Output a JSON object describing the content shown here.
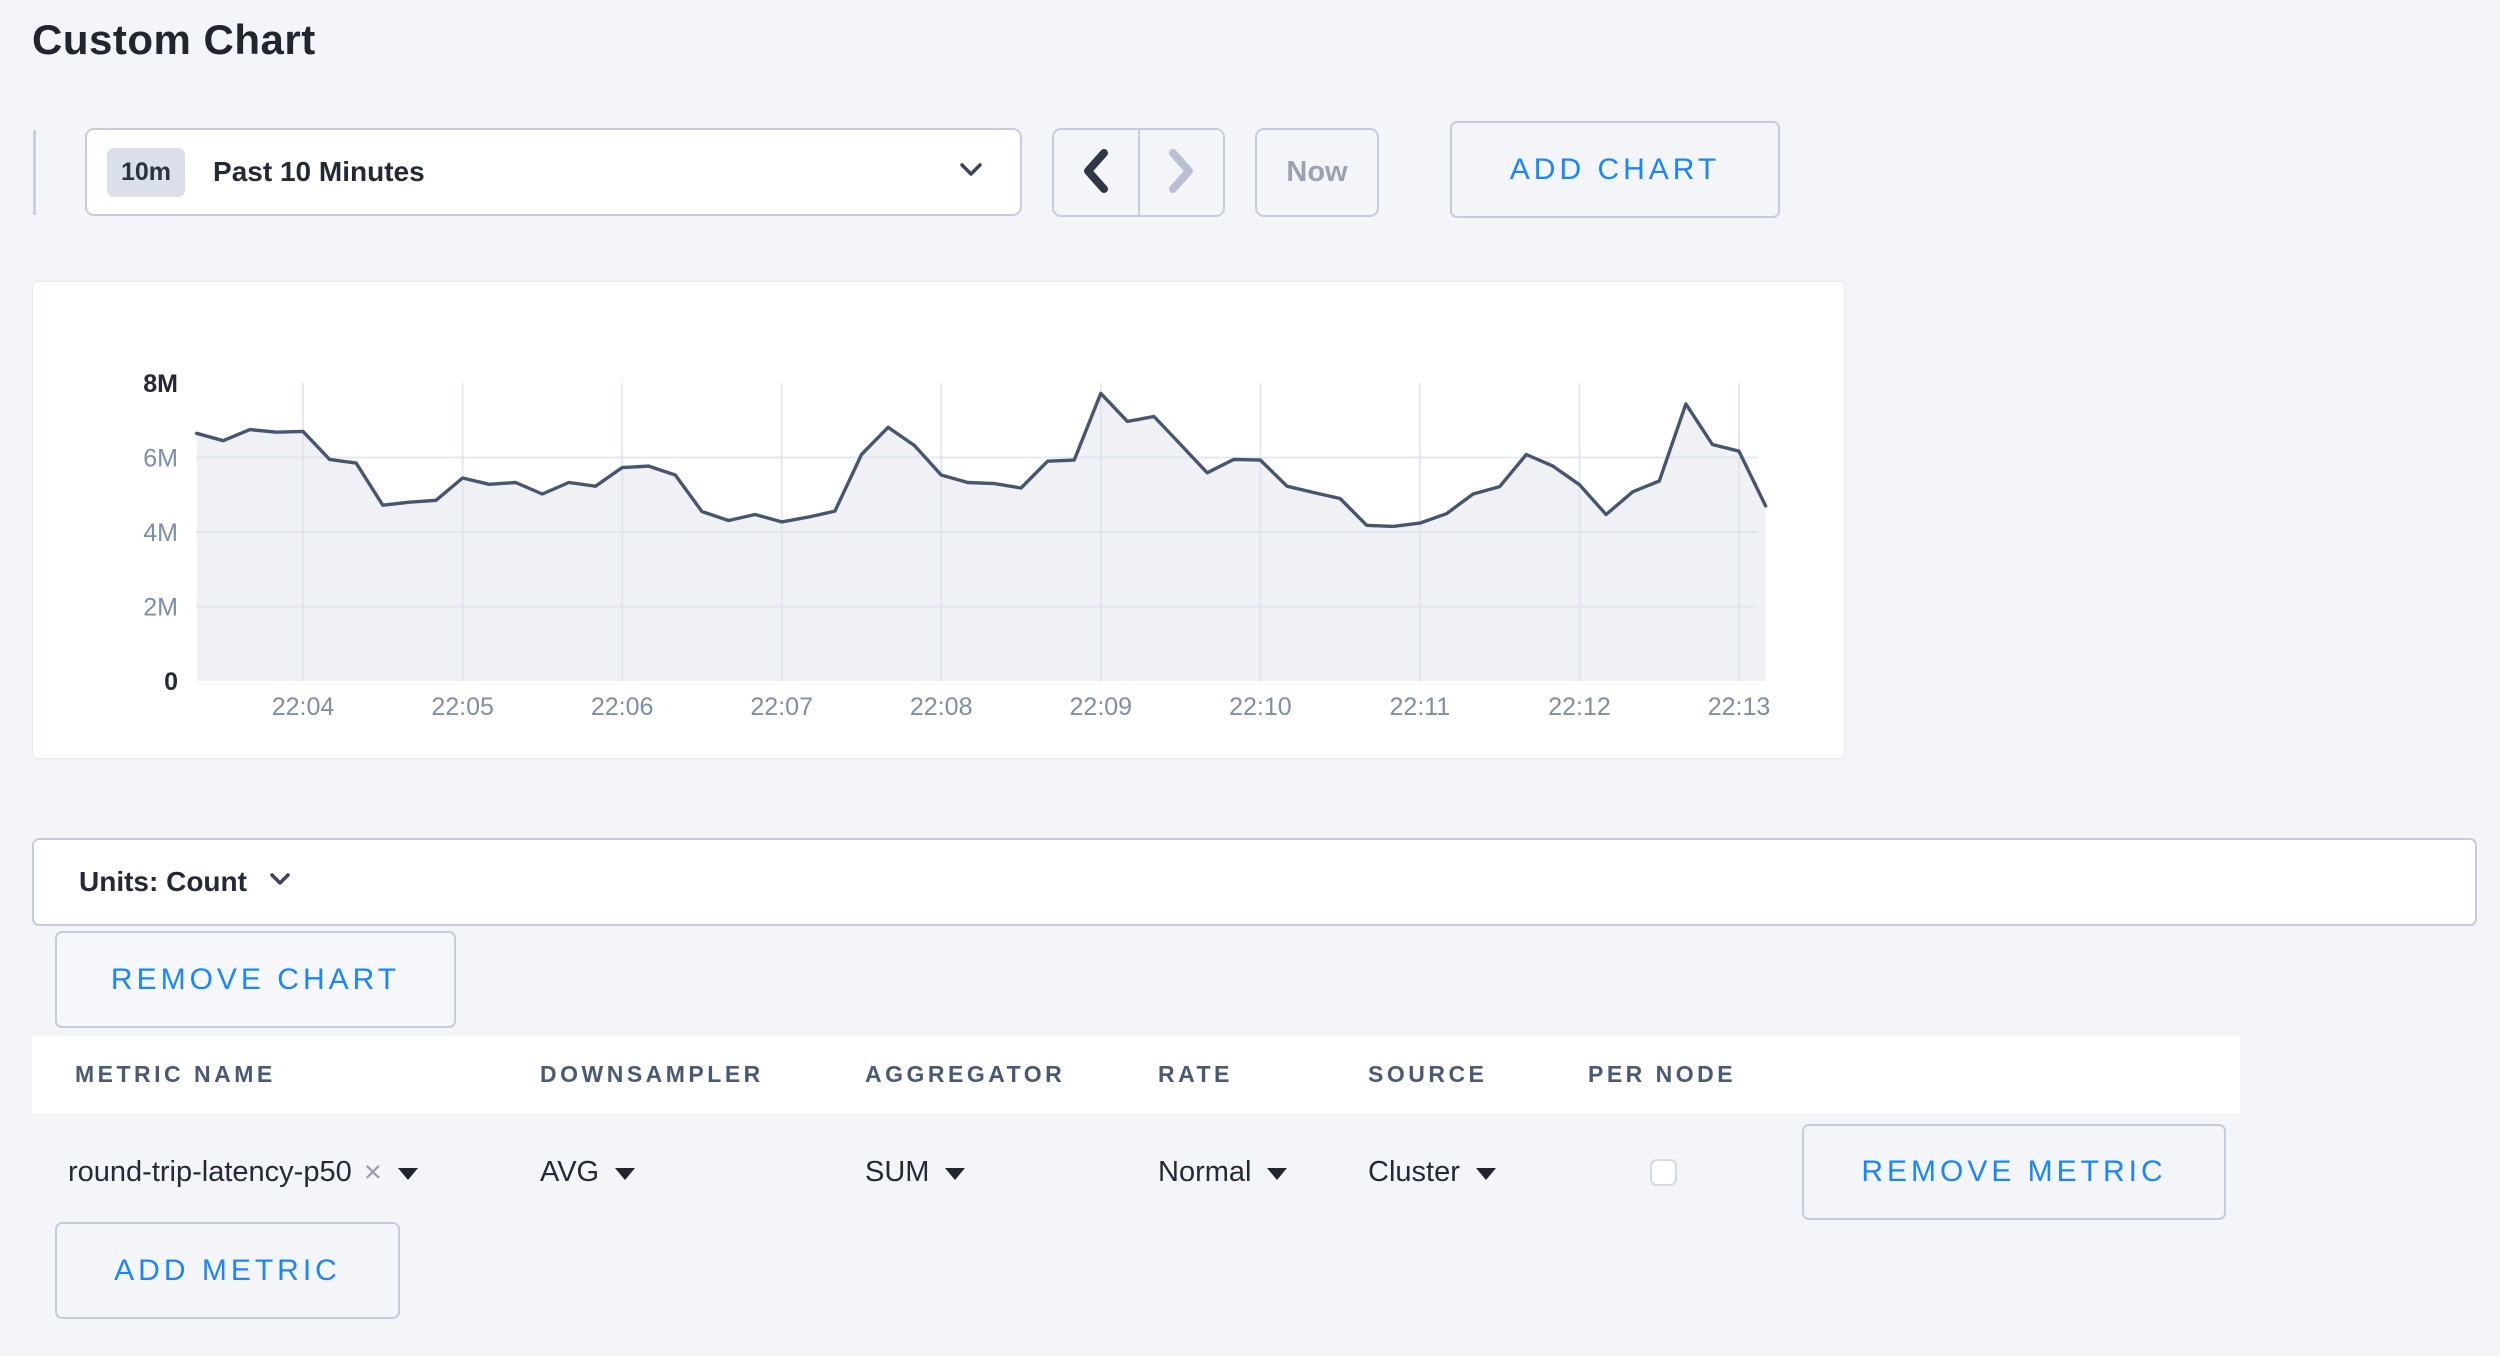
{
  "page": {
    "title": "Custom Chart",
    "background": "#f4f5f9"
  },
  "toolbar": {
    "time_window_badge": "10m",
    "time_window_label": "Past 10 Minutes",
    "now_label": "Now",
    "add_chart_label": "ADD CHART"
  },
  "units_bar": {
    "label": "Units: Count"
  },
  "chart_actions": {
    "remove_chart_label": "REMOVE CHART"
  },
  "metrics_table": {
    "columns": [
      "METRIC NAME",
      "DOWNSAMPLER",
      "AGGREGATOR",
      "RATE",
      "SOURCE",
      "PER NODE"
    ],
    "rows": [
      {
        "metric_name": "round-trip-latency-p50",
        "downsampler": "AVG",
        "aggregator": "SUM",
        "rate": "Normal",
        "source": "Cluster",
        "per_node_checked": false,
        "remove_label": "REMOVE METRIC"
      }
    ],
    "add_metric_label": "ADD METRIC"
  },
  "icons": {
    "clear": "×"
  },
  "colors": {
    "accent_blue": "#1b85ff",
    "line": "#47566e",
    "area_fill": "#eceef2",
    "gridline": "#dde2ec",
    "axis_label": "#7d8ea8",
    "text_dark": "#242a35"
  },
  "chart_data": {
    "type": "area",
    "title": "",
    "xlabel": "",
    "ylabel": "",
    "grid": true,
    "legend": "none",
    "ylim_millions": [
      0,
      8
    ],
    "y_ticks": [
      {
        "label": "0",
        "value": 0,
        "strong": true
      },
      {
        "label": "2M",
        "value": 2,
        "strong": false
      },
      {
        "label": "4M",
        "value": 4,
        "strong": false
      },
      {
        "label": "6M",
        "value": 6,
        "strong": false
      },
      {
        "label": "8M",
        "value": 8,
        "strong": true
      }
    ],
    "x_tick_labels": [
      "22:04",
      "22:05",
      "22:06",
      "22:07",
      "22:08",
      "22:09",
      "22:10",
      "22:11",
      "22:12",
      "22:13"
    ],
    "x_start_time": "22:03:20",
    "x_interval_seconds": 10,
    "t0_offset_sec_from_first_tick": -40,
    "series": [
      {
        "name": "round-trip-latency-p50",
        "unit": "count",
        "values_millions": [
          6.65,
          6.45,
          6.75,
          6.68,
          6.7,
          5.95,
          5.85,
          4.72,
          4.8,
          4.85,
          5.45,
          5.28,
          5.33,
          5.02,
          5.33,
          5.23,
          5.73,
          5.77,
          5.53,
          4.55,
          4.31,
          4.47,
          4.27,
          4.4,
          4.56,
          6.08,
          6.81,
          6.32,
          5.53,
          5.33,
          5.3,
          5.18,
          5.9,
          5.93,
          7.72,
          6.97,
          7.1,
          6.35,
          5.59,
          5.95,
          5.93,
          5.23,
          5.06,
          4.9,
          4.18,
          4.15,
          4.24,
          4.49,
          5.02,
          5.22,
          6.08,
          5.77,
          5.27,
          4.47,
          5.08,
          5.37,
          7.44,
          6.35,
          6.17,
          4.7
        ]
      }
    ]
  }
}
